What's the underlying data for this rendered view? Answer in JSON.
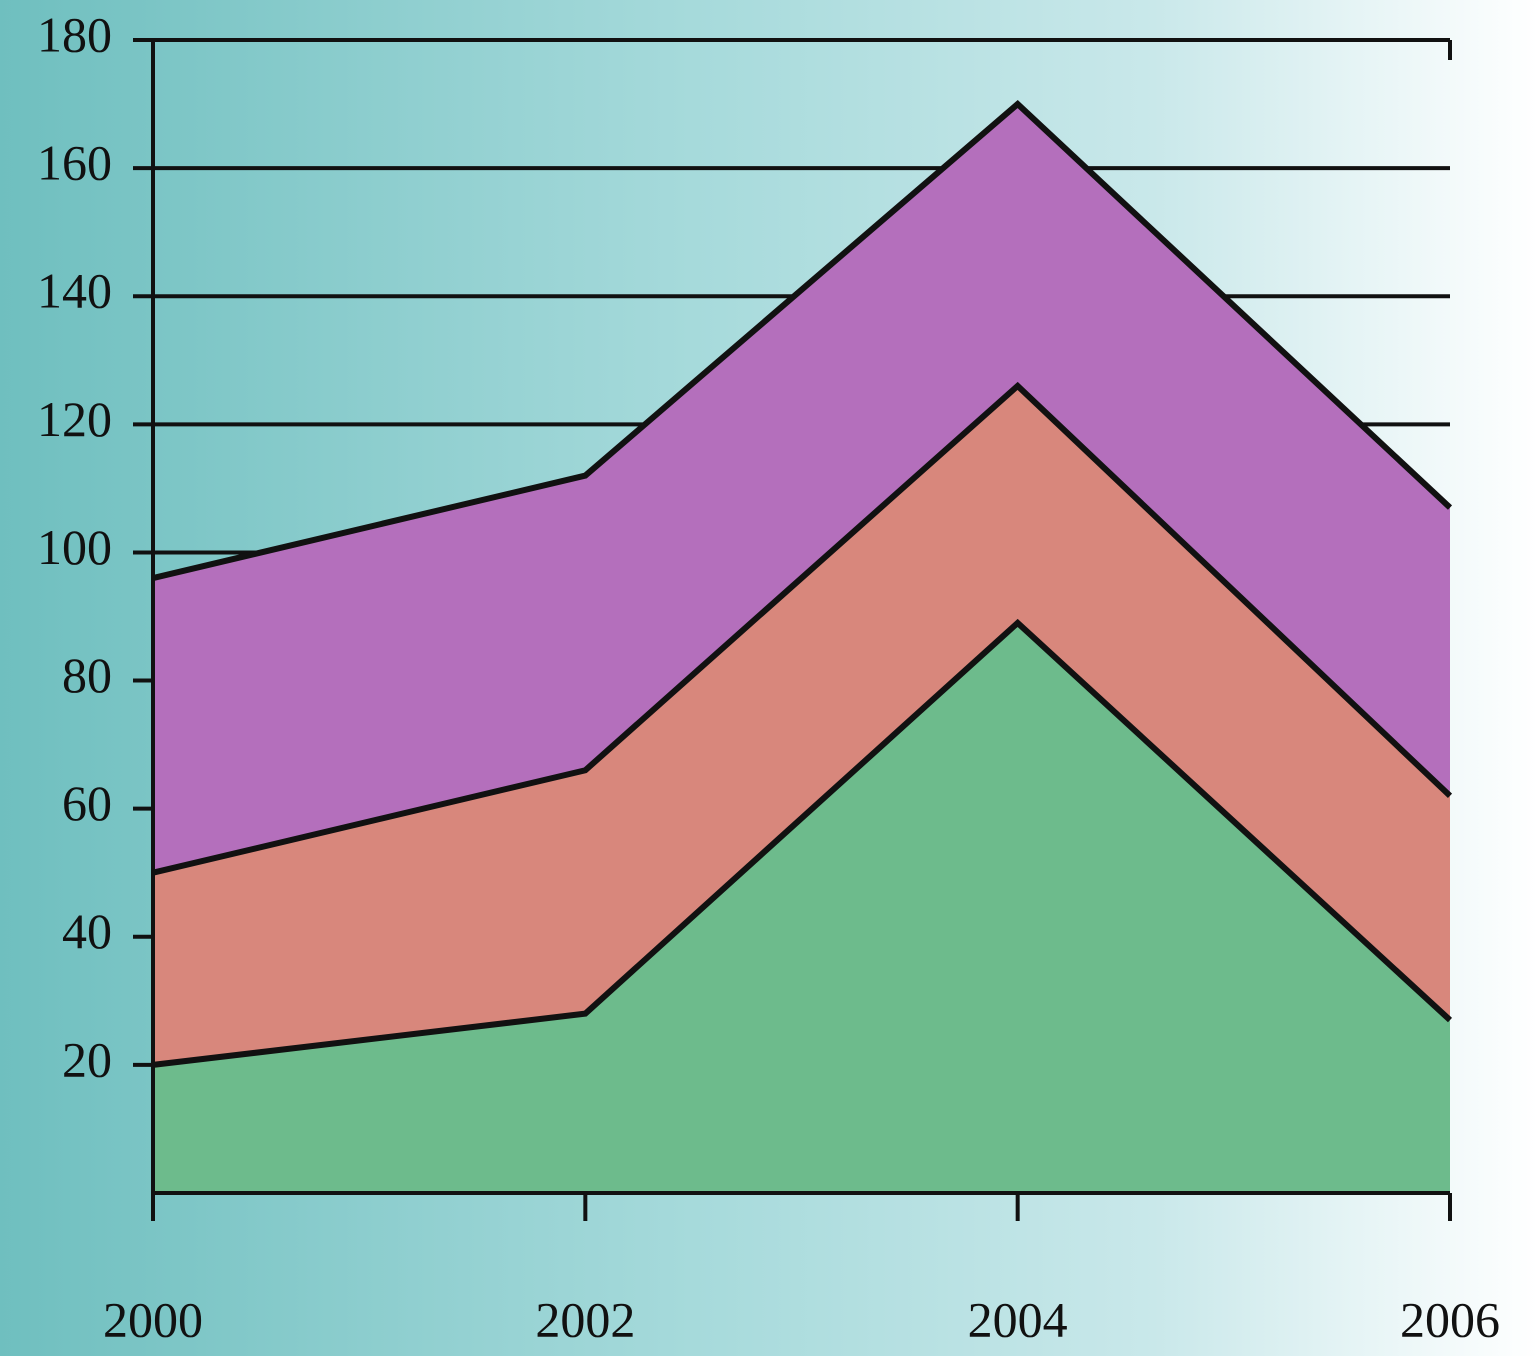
{
  "chart_data": {
    "type": "area",
    "x": [
      2000,
      2002,
      2004,
      2006
    ],
    "series": [
      {
        "color": "#6dbb8c",
        "values": [
          20,
          28,
          89,
          27
        ]
      },
      {
        "color": "#d8877c",
        "values": [
          50,
          66,
          126,
          62
        ]
      },
      {
        "color": "#b46fbc",
        "values": [
          96,
          112,
          170,
          107
        ]
      }
    ],
    "xlim": [
      2000,
      2006
    ],
    "xticks": [
      2000,
      2002,
      2004,
      2006
    ],
    "ylim": [
      0,
      180
    ],
    "yticks": [
      20,
      40,
      60,
      80,
      100,
      120,
      140,
      160,
      180
    ],
    "grid": true
  }
}
